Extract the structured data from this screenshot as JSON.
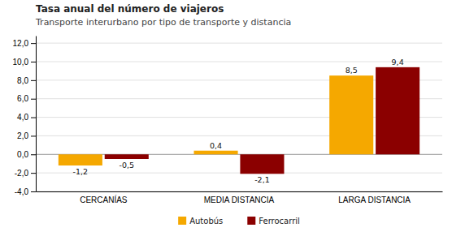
{
  "chart_data": {
    "type": "bar",
    "title": "Tasa anual del número de viajeros",
    "subtitle": "Transporte interurbano por tipo de transporte y distancia",
    "categories": [
      "CERCANÍAS",
      "MEDIA DISTANCIA",
      "LARGA DISTANCIA"
    ],
    "series": [
      {
        "name": "Autobús",
        "color": "#F5A800",
        "values": [
          -1.2,
          0.4,
          8.5
        ],
        "value_labels": [
          "-1,2",
          "0,4",
          "8,5"
        ]
      },
      {
        "name": "Ferrocarril",
        "color": "#8B0000",
        "values": [
          -0.5,
          -2.1,
          9.4
        ],
        "value_labels": [
          "-0,5",
          "-2,1",
          "9,4"
        ]
      }
    ],
    "ylim": [
      -4,
      12.8
    ],
    "yticks": [
      {
        "value": -4,
        "label": "-4,0"
      },
      {
        "value": -2,
        "label": "-2,0"
      },
      {
        "value": 0,
        "label": "0,0"
      },
      {
        "value": 2,
        "label": "2,0"
      },
      {
        "value": 4,
        "label": "4,0"
      },
      {
        "value": 6,
        "label": "6,0"
      },
      {
        "value": 8,
        "label": "8,0"
      },
      {
        "value": 10,
        "label": "10,0"
      },
      {
        "value": 12,
        "label": "12,0"
      }
    ],
    "grid": true,
    "legend": "bottom",
    "data_labels": true
  }
}
